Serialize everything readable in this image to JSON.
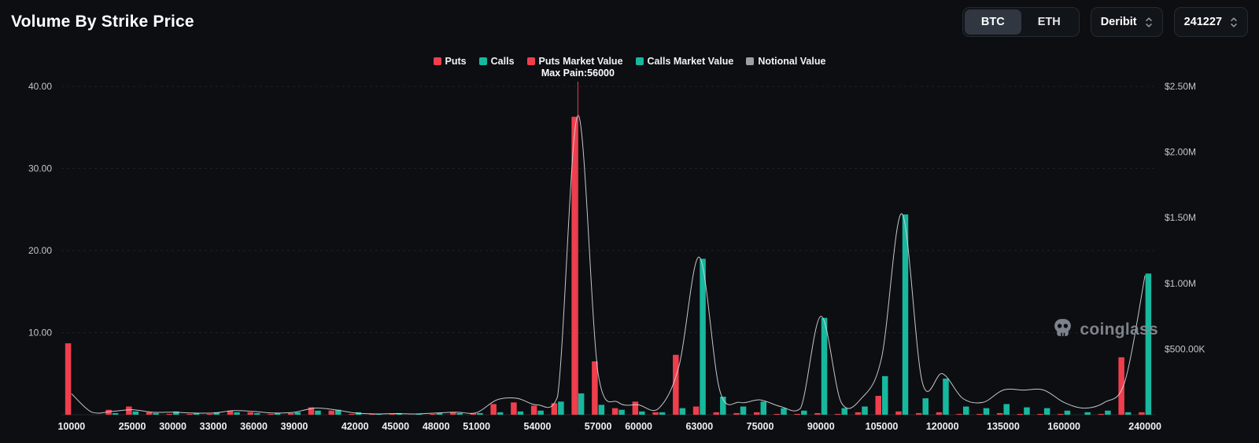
{
  "header": {
    "title": "Volume By Strike Price",
    "coin_toggle": {
      "options": [
        "BTC",
        "ETH"
      ],
      "selected": "BTC"
    },
    "exchange": "Deribit",
    "expiry": "241227"
  },
  "legend": [
    {
      "label": "Puts",
      "color": "#f03e4d"
    },
    {
      "label": "Calls",
      "color": "#17b89e"
    },
    {
      "label": "Puts Market Value",
      "color": "#f03e4d"
    },
    {
      "label": "Calls Market Value",
      "color": "#17b89e"
    },
    {
      "label": "Notional Value",
      "color": "#9ca0a6"
    }
  ],
  "watermark": {
    "text": "coinglass"
  },
  "chart_data": {
    "type": "bar",
    "title": "Volume By Strike Price",
    "max_pain": {
      "text": "Max Pain:56000",
      "strike": 56000,
      "color": "#e8404f"
    },
    "left_axis": {
      "labels": [
        "10.00",
        "20.00",
        "30.00",
        "40.00"
      ],
      "values": [
        10,
        20,
        30,
        40
      ],
      "max": 40
    },
    "right_axis": {
      "labels": [
        "$500.00K",
        "$1.00M",
        "$1.50M",
        "$2.00M",
        "$2.50M"
      ],
      "values": [
        500000,
        1000000,
        1500000,
        2000000,
        2500000
      ],
      "max": 2500000
    },
    "x_tick_labels": [
      "10000",
      "25000",
      "30000",
      "33000",
      "36000",
      "39000",
      "42000",
      "45000",
      "48000",
      "51000",
      "54000",
      "57000",
      "60000",
      "63000",
      "75000",
      "90000",
      "105000",
      "120000",
      "135000",
      "160000",
      "240000"
    ],
    "strikes": [
      10000,
      15000,
      20000,
      25000,
      28000,
      30000,
      32000,
      33000,
      35000,
      36000,
      38000,
      39000,
      40000,
      41000,
      42000,
      44000,
      45000,
      47000,
      48000,
      50000,
      51000,
      52000,
      53000,
      54000,
      55000,
      56000,
      57000,
      58000,
      60000,
      61000,
      62000,
      63000,
      65000,
      70000,
      75000,
      80000,
      85000,
      90000,
      95000,
      100000,
      105000,
      110000,
      115000,
      120000,
      125000,
      130000,
      135000,
      140000,
      150000,
      160000,
      180000,
      200000,
      230000,
      240000
    ],
    "series": [
      {
        "name": "Puts",
        "type": "bar",
        "axis": "left",
        "color": "#f03e4d",
        "values": [
          8.7,
          0,
          0.6,
          1.0,
          0.3,
          0.1,
          0.1,
          0.1,
          0.5,
          0.3,
          0.1,
          0.2,
          0.9,
          0.5,
          0.1,
          0.1,
          0.1,
          0,
          0.1,
          0.3,
          0.2,
          1.3,
          1.5,
          1.1,
          1.4,
          36.3,
          6.5,
          0.8,
          1.6,
          0.3,
          7.3,
          1.0,
          0.3,
          0.2,
          0.3,
          0.1,
          0.1,
          0.2,
          0.1,
          0.3,
          2.3,
          0.4,
          0.2,
          0.3,
          0.1,
          0.1,
          0.2,
          0.1,
          0.1,
          0.1,
          0,
          0.1,
          7.0,
          0.3
        ]
      },
      {
        "name": "Calls",
        "type": "bar",
        "axis": "left",
        "color": "#17b89e",
        "values": [
          0,
          0,
          0.2,
          0.4,
          0.2,
          0.4,
          0.2,
          0.3,
          0.3,
          0.2,
          0.2,
          0.3,
          0.5,
          0.6,
          0.3,
          0.1,
          0.2,
          0.1,
          0.2,
          0.2,
          0.2,
          0.3,
          0.4,
          0.5,
          1.6,
          2.6,
          1.2,
          0.6,
          0.4,
          0.3,
          0.8,
          19.0,
          2.2,
          1.0,
          1.6,
          0.8,
          0.5,
          11.8,
          0.8,
          1.0,
          4.7,
          24.4,
          2.0,
          4.4,
          1.0,
          0.8,
          1.3,
          0.9,
          0.8,
          0.5,
          0.3,
          0.5,
          0.3,
          17.2
        ]
      },
      {
        "name": "Notional Value",
        "type": "line",
        "axis": "right",
        "color": "#d8dadd",
        "values": [
          160000,
          20000,
          25000,
          38000,
          19000,
          19000,
          13000,
          13000,
          31000,
          25000,
          13000,
          19000,
          50000,
          38000,
          13000,
          6000,
          9000,
          6000,
          13000,
          19000,
          16000,
          113000,
          125000,
          75000,
          138000,
          2280000,
          313000,
          94000,
          75000,
          50000,
          375000,
          1200000,
          188000,
          94000,
          113000,
          63000,
          50000,
          750000,
          94000,
          125000,
          438000,
          1530000,
          250000,
          313000,
          125000,
          94000,
          188000,
          188000,
          188000,
          94000,
          50000,
          94000,
          250000,
          1060000
        ]
      }
    ],
    "legend_position": "top",
    "grid": true
  }
}
